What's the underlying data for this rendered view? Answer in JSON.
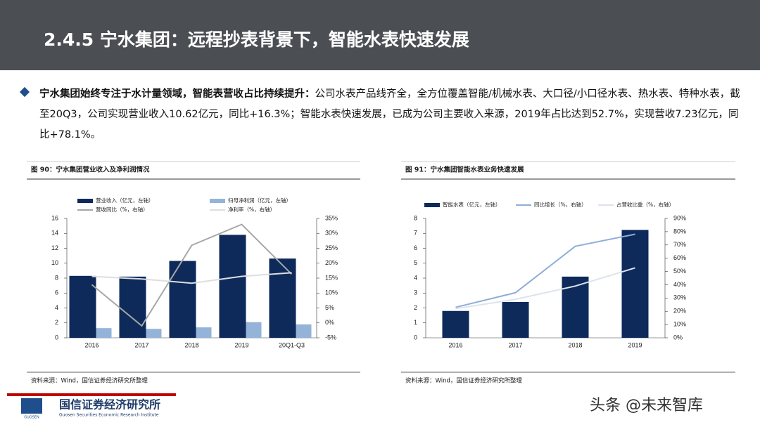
{
  "header": {
    "title": "2.4.5 宁水集团：远程抄表背景下，智能水表快速发展"
  },
  "bullet": {
    "lead": "宁水集团始终专注于水计量领域，智能表营收占比持续提升：",
    "text": "公司水表产品线齐全，全方位覆盖智能/机械水表、大口径/小口径水表、热水表、特种水表，截至20Q3，公司实现营业收入10.62亿元，同比+16.3%；智能水表快速发展，已成为公司主要收入来源，2019年占比达到52.7%，实现营收7.23亿元，同比+78.1%。"
  },
  "chart_data": [
    {
      "type": "bar",
      "title": "图 90：宁水集团营业收入及净利润情况",
      "source": "资料来源：Wind，国信证券经济研究所整理",
      "categories": [
        "2016",
        "2017",
        "2018",
        "2019",
        "20Q1-Q3"
      ],
      "ylim": [
        0,
        16
      ],
      "yticks": [
        0,
        2,
        4,
        6,
        8,
        10,
        12,
        14,
        16
      ],
      "y2lim": [
        -5,
        35
      ],
      "y2ticks": [
        {
          "value": -5,
          "label": "-5%"
        },
        {
          "value": 0,
          "label": "0%"
        },
        {
          "value": 5,
          "label": "5%"
        },
        {
          "value": 10,
          "label": "10%"
        },
        {
          "value": 15,
          "label": "15%"
        },
        {
          "value": 20,
          "label": "20%"
        },
        {
          "value": 25,
          "label": "25%"
        },
        {
          "value": 30,
          "label": "30%"
        },
        {
          "value": 35,
          "label": "35%"
        }
      ],
      "series": [
        {
          "name": "营业收入（亿元，左轴）",
          "type": "bar",
          "color": "#0d2a5b",
          "values": [
            8.3,
            8.2,
            10.3,
            13.8,
            10.62
          ]
        },
        {
          "name": "归母净利润（亿元，左轴）",
          "type": "bar",
          "color": "#94b3d9",
          "values": [
            1.3,
            1.2,
            1.4,
            2.1,
            1.8
          ]
        },
        {
          "name": "营收同比（%，右轴）",
          "type": "line",
          "axis": "y2",
          "color": "#a6a6a6",
          "values": [
            12.8,
            -1,
            26,
            33,
            16.3
          ]
        },
        {
          "name": "净利率（%，右轴）",
          "type": "line",
          "axis": "y2",
          "color": "#dedede",
          "values": [
            15.6,
            14.7,
            13.3,
            15.6,
            16.8
          ]
        }
      ]
    },
    {
      "type": "bar",
      "title": "图 91：宁水集团智能水表业务快速发展",
      "source": "资料来源：Wind，国信证券经济研究所整理",
      "categories": [
        "2016",
        "2017",
        "2018",
        "2019"
      ],
      "ylim": [
        0,
        8
      ],
      "yticks": [
        0,
        1,
        2,
        3,
        4,
        5,
        6,
        7,
        8
      ],
      "y2lim": [
        0,
        90
      ],
      "y2ticks": [
        {
          "value": 0,
          "label": "0%"
        },
        {
          "value": 10,
          "label": "10%"
        },
        {
          "value": 20,
          "label": "20%"
        },
        {
          "value": 30,
          "label": "30%"
        },
        {
          "value": 40,
          "label": "40%"
        },
        {
          "value": 50,
          "label": "50%"
        },
        {
          "value": 60,
          "label": "60%"
        },
        {
          "value": 70,
          "label": "70%"
        },
        {
          "value": 80,
          "label": "80%"
        },
        {
          "value": 90,
          "label": "90%"
        }
      ],
      "series": [
        {
          "name": "智能水表（亿元，左轴）",
          "type": "bar",
          "color": "#0d2a5b",
          "values": [
            1.8,
            2.4,
            4.1,
            7.23
          ]
        },
        {
          "name": "同比增长（%，右轴）",
          "type": "line",
          "axis": "y2",
          "color": "#8eaed8",
          "values": [
            23,
            34,
            69,
            78.1
          ]
        },
        {
          "name": "占营收比重（%，右轴）",
          "type": "line",
          "axis": "y2",
          "color": "#dde3ec",
          "values": [
            22,
            29,
            39,
            52.7
          ]
        }
      ]
    }
  ],
  "footer": {
    "logo_cn": "国信证券经济研究所",
    "logo_en": "Guosen Securities Economic Research Institute",
    "logo_mark": "GUOSEN",
    "watermark": "头条 @未来智库"
  }
}
